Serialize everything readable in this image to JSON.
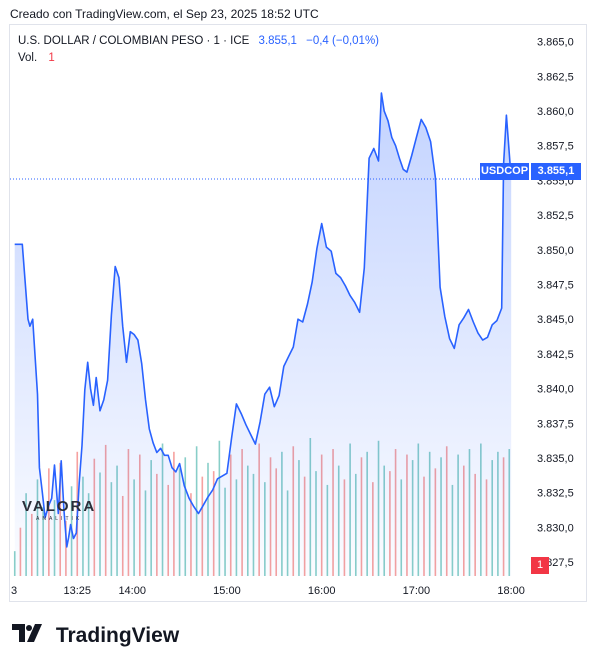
{
  "caption": "Creado con TradingView.com, el Sep 23, 2025 18:52 UTC",
  "legend": {
    "symbol": "U.S. DOLLAR / COLOMBIAN PESO · 1 · ICE",
    "price": "3.855,1",
    "change": "−0,4 (−0,01%)",
    "vol_label": "Vol.",
    "vol_value": "1"
  },
  "price_tag": {
    "ticker": "USDCOP",
    "price": "3.855,1"
  },
  "volume_tag": "1",
  "watermark": {
    "name": "VALORA",
    "sub": "ANALITIK"
  },
  "footer": "TradingView",
  "colors": {
    "line": "#2962ff",
    "fill": "#2962ff",
    "up_volume": "#26a69a",
    "down_volume": "#ef5350"
  },
  "chart_data": {
    "type": "area",
    "title": "U.S. DOLLAR / COLOMBIAN PESO",
    "x_ticks": [
      "3",
      "13:25",
      "14:00",
      "15:00",
      "16:00",
      "17:00",
      "18:00"
    ],
    "y_ticks": [
      "3.865,0",
      "3.862,5",
      "3.860,0",
      "3.857,5",
      "3.855,0",
      "3.852,5",
      "3.850,0",
      "3.847,5",
      "3.845,0",
      "3.842,5",
      "3.840,0",
      "3.837,5",
      "3.835,0",
      "3.832,5",
      "3.830,0",
      "3.827,5"
    ],
    "ylim": [
      3826.5,
      3866.2
    ],
    "last_price": 3855.1,
    "x_unit": "hours_utc",
    "series": [
      {
        "x": [
          12.76,
          12.79,
          12.84,
          12.9,
          12.92,
          12.95,
          13.0,
          13.02,
          13.05,
          13.08,
          13.12,
          13.15,
          13.18,
          13.22,
          13.25,
          13.28,
          13.31,
          13.33,
          13.35,
          13.38,
          13.41,
          13.44,
          13.47,
          13.5,
          13.53,
          13.56,
          13.59,
          13.62,
          13.66,
          13.7,
          13.74,
          13.78,
          13.82,
          13.86,
          13.9,
          13.94,
          13.98,
          14.02,
          14.06,
          14.1,
          14.14,
          14.18,
          14.22,
          14.26,
          14.3,
          14.34,
          14.38,
          14.42,
          14.46,
          14.5,
          14.55,
          14.6,
          14.65,
          14.7,
          14.75,
          14.8,
          14.85,
          14.9,
          14.95,
          15.0,
          15.05,
          15.1,
          15.15,
          15.2,
          15.25,
          15.3,
          15.35,
          15.4,
          15.45,
          15.5,
          15.55,
          15.6,
          15.65,
          15.7,
          15.75,
          15.8,
          15.85,
          15.9,
          15.95,
          16.0,
          16.05,
          16.1,
          16.15,
          16.2,
          16.25,
          16.3,
          16.35,
          16.4,
          16.45,
          16.5,
          16.55,
          16.6,
          16.63,
          16.66,
          16.7,
          16.74,
          16.78,
          16.82,
          16.86,
          16.9,
          16.95,
          17.0,
          17.05,
          17.1,
          17.15,
          17.2,
          17.25,
          17.3,
          17.35,
          17.4,
          17.45,
          17.5,
          17.55,
          17.6,
          17.65,
          17.7,
          17.75,
          17.8,
          17.85,
          17.9,
          17.92,
          17.95,
          18.0
        ],
        "y": [
          3850.4,
          3850.4,
          3850.4,
          3845.0,
          3844.5,
          3845.0,
          3839.6,
          3834.3,
          3832.6,
          3830.7,
          3831.6,
          3832.1,
          3834.5,
          3831.0,
          3834.8,
          3831.2,
          3828.6,
          3829.3,
          3830.2,
          3829.2,
          3829.6,
          3833.2,
          3835.9,
          3839.9,
          3841.9,
          3840.0,
          3838.8,
          3840.8,
          3838.4,
          3839.2,
          3840.6,
          3845.3,
          3848.8,
          3848.0,
          3844.5,
          3841.9,
          3844.1,
          3843.9,
          3843.5,
          3841.8,
          3839.2,
          3837.1,
          3836.1,
          3835.4,
          3835.7,
          3835.2,
          3835.2,
          3834.3,
          3834.0,
          3834.6,
          3833.0,
          3832.1,
          3831.5,
          3831.0,
          3831.6,
          3832.2,
          3832.7,
          3833.5,
          3833.7,
          3833.9,
          3836.5,
          3838.9,
          3838.2,
          3837.4,
          3836.7,
          3836.0,
          3837.6,
          3839.6,
          3840.1,
          3838.7,
          3839.5,
          3841.6,
          3842.3,
          3843.0,
          3845.0,
          3844.8,
          3846.1,
          3847.7,
          3850.1,
          3851.9,
          3850.2,
          3849.9,
          3848.3,
          3848.0,
          3847.4,
          3846.7,
          3846.2,
          3845.5,
          3848.7,
          3856.6,
          3857.3,
          3856.4,
          3861.3,
          3860.0,
          3859.3,
          3858.1,
          3857.5,
          3856.6,
          3855.8,
          3855.6,
          3856.8,
          3858.1,
          3859.4,
          3858.8,
          3857.8,
          3855.2,
          3847.3,
          3845.2,
          3843.6,
          3842.9,
          3844.6,
          3845.1,
          3845.7,
          3844.8,
          3844.0,
          3843.5,
          3843.7,
          3844.6,
          3844.9,
          3845.8,
          3856.2,
          3859.7,
          3855.1
        ]
      }
    ],
    "volume": {
      "x": [
        12.76,
        12.82,
        12.88,
        12.94,
        13.0,
        13.06,
        13.12,
        13.18,
        13.24,
        13.3,
        13.36,
        13.42,
        13.48,
        13.54,
        13.6,
        13.66,
        13.72,
        13.78,
        13.84,
        13.9,
        13.96,
        14.02,
        14.08,
        14.14,
        14.2,
        14.26,
        14.32,
        14.38,
        14.44,
        14.5,
        14.56,
        14.62,
        14.68,
        14.74,
        14.8,
        14.86,
        14.92,
        14.98,
        15.04,
        15.1,
        15.16,
        15.22,
        15.28,
        15.34,
        15.4,
        15.46,
        15.52,
        15.58,
        15.64,
        15.7,
        15.76,
        15.82,
        15.88,
        15.94,
        16.0,
        16.06,
        16.12,
        16.18,
        16.24,
        16.3,
        16.36,
        16.42,
        16.48,
        16.54,
        16.6,
        16.66,
        16.72,
        16.78,
        16.84,
        16.9,
        16.96,
        17.02,
        17.08,
        17.14,
        17.2,
        17.26,
        17.32,
        17.38,
        17.44,
        17.5,
        17.56,
        17.62,
        17.68,
        17.74,
        17.8,
        17.86,
        17.92,
        17.98
      ],
      "v": [
        0.18,
        0.35,
        0.6,
        0.45,
        0.7,
        0.5,
        0.78,
        0.55,
        0.82,
        0.4,
        0.65,
        0.9,
        0.72,
        0.6,
        0.85,
        0.75,
        0.95,
        0.68,
        0.8,
        0.58,
        0.92,
        0.7,
        0.88,
        0.62,
        0.84,
        0.74,
        0.96,
        0.66,
        0.9,
        0.78,
        0.86,
        0.6,
        0.94,
        0.72,
        0.82,
        0.76,
        0.98,
        0.64,
        0.88,
        0.7,
        0.92,
        0.8,
        0.74,
        0.96,
        0.68,
        0.86,
        0.78,
        0.9,
        0.62,
        0.94,
        0.84,
        0.72,
        1.0,
        0.76,
        0.88,
        0.66,
        0.92,
        0.8,
        0.7,
        0.96,
        0.74,
        0.86,
        0.9,
        0.68,
        0.98,
        0.8,
        0.76,
        0.92,
        0.7,
        0.88,
        0.84,
        0.96,
        0.72,
        0.9,
        0.78,
        0.86,
        0.94,
        0.66,
        0.88,
        0.8,
        0.92,
        0.74,
        0.96,
        0.7,
        0.84,
        0.9,
        0.86,
        0.92
      ],
      "up": [
        1,
        0,
        1,
        0,
        1,
        1,
        0,
        1,
        0,
        0,
        1,
        0,
        1,
        1,
        0,
        1,
        0,
        1,
        1,
        0,
        0,
        1,
        0,
        1,
        1,
        0,
        1,
        0,
        0,
        1,
        1,
        0,
        1,
        0,
        1,
        0,
        1,
        1,
        0,
        1,
        0,
        1,
        1,
        0,
        1,
        0,
        0,
        1,
        1,
        0,
        1,
        0,
        1,
        1,
        0,
        1,
        0,
        1,
        0,
        1,
        1,
        0,
        1,
        0,
        1,
        1,
        0,
        0,
        1,
        0,
        1,
        1,
        0,
        1,
        0,
        1,
        0,
        1,
        1,
        0,
        1,
        0,
        1,
        0,
        1,
        1,
        0,
        1
      ]
    }
  }
}
